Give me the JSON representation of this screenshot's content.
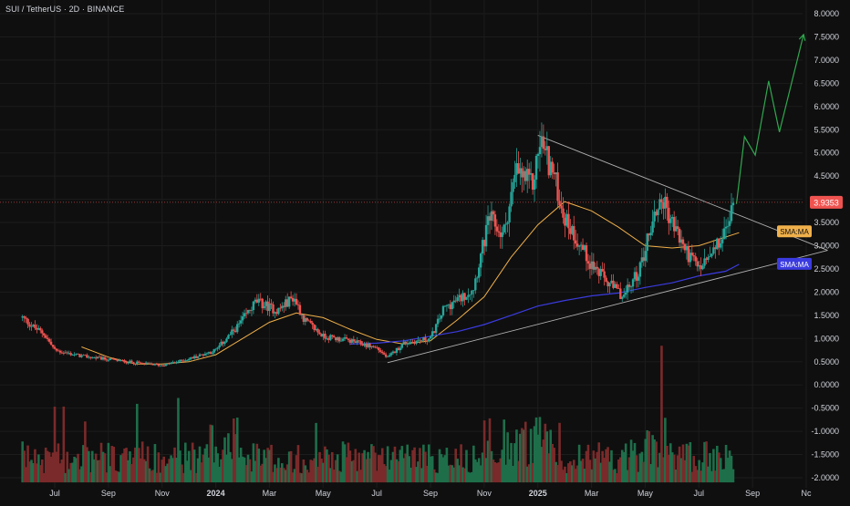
{
  "header": {
    "symbol": "SUI / TetherUS",
    "interval": "2D",
    "exchange": "BINANCE",
    "separator": " · "
  },
  "colors": {
    "background": "#0f0f0f",
    "grid": "#1c1c1c",
    "axis_text": "#d1d4dc",
    "up": "#26a69a",
    "down": "#ef5350",
    "vol_up": "#1e6e4a",
    "vol_down": "#7a2a2a",
    "sma_short": "#f0b04a",
    "sma_long": "#3b3be0",
    "triangle": "#b0b0b0",
    "projection": "#2fa84f",
    "price_line": "#ef5350"
  },
  "chart_data": {
    "type": "candlestick",
    "title": "SUI / TetherUS · 2D · BINANCE",
    "y_axis": {
      "position": "right",
      "ticks": [
        "8.0000",
        "7.5000",
        "7.0000",
        "6.5000",
        "6.0000",
        "5.5000",
        "5.0000",
        "4.5000",
        "4.0000",
        "3.5000",
        "3.0000",
        "2.5000",
        "2.0000",
        "1.5000",
        "1.0000",
        "0.5000",
        "0.0000",
        "-0.5000",
        "-1.0000",
        "-1.5000",
        "-2.0000"
      ],
      "range": [
        -2.1,
        8.2
      ]
    },
    "x_axis": {
      "ticks": [
        "Jul",
        "Sep",
        "Nov",
        "2024",
        "Mar",
        "May",
        "Jul",
        "Sep",
        "Nov",
        "2025",
        "Mar",
        "May",
        "Jul",
        "Sep",
        "Nc"
      ],
      "bold_ticks": [
        "2024",
        "2025"
      ]
    },
    "x_ticks_time": [
      0.0,
      2.0,
      4.0,
      6.0,
      8.0,
      10.0,
      12.0,
      14.0,
      16.0,
      18.0,
      20.0,
      22.0,
      24.0,
      26.0,
      28.0
    ],
    "x_range": [
      -1.2,
      29.0
    ],
    "price_anchors": [
      [
        -1.2,
        1.45
      ],
      [
        -0.8,
        1.25
      ],
      [
        -0.4,
        1.1
      ],
      [
        0.0,
        0.75
      ],
      [
        0.5,
        0.68
      ],
      [
        1.0,
        0.62
      ],
      [
        2.0,
        0.55
      ],
      [
        3.0,
        0.48
      ],
      [
        4.0,
        0.42
      ],
      [
        5.0,
        0.56
      ],
      [
        6.0,
        0.75
      ],
      [
        6.8,
        1.25
      ],
      [
        7.5,
        1.8
      ],
      [
        8.3,
        1.6
      ],
      [
        8.9,
        1.9
      ],
      [
        9.3,
        1.4
      ],
      [
        10.0,
        1.05
      ],
      [
        11.0,
        0.95
      ],
      [
        12.0,
        0.8
      ],
      [
        12.4,
        0.58
      ],
      [
        13.0,
        0.9
      ],
      [
        14.0,
        1.0
      ],
      [
        14.5,
        1.65
      ],
      [
        15.2,
        1.9
      ],
      [
        15.6,
        2.1
      ],
      [
        16.2,
        3.6
      ],
      [
        16.7,
        3.2
      ],
      [
        17.2,
        4.6
      ],
      [
        17.8,
        4.3
      ],
      [
        18.1,
        5.3
      ],
      [
        18.6,
        4.5
      ],
      [
        19.0,
        3.6
      ],
      [
        19.5,
        3.1
      ],
      [
        20.0,
        2.6
      ],
      [
        20.6,
        2.2
      ],
      [
        21.2,
        1.9
      ],
      [
        21.8,
        2.5
      ],
      [
        22.2,
        3.4
      ],
      [
        22.6,
        4.05
      ],
      [
        23.0,
        3.5
      ],
      [
        23.5,
        2.9
      ],
      [
        24.0,
        2.5
      ],
      [
        24.5,
        2.8
      ],
      [
        25.0,
        3.3
      ],
      [
        25.3,
        3.9
      ]
    ],
    "current_price": "3.9353",
    "sma_short": {
      "label": "SMA:MA",
      "points": [
        [
          1.0,
          0.82
        ],
        [
          2.0,
          0.6
        ],
        [
          3.0,
          0.45
        ],
        [
          4.0,
          0.45
        ],
        [
          5.0,
          0.5
        ],
        [
          6.0,
          0.65
        ],
        [
          7.0,
          1.0
        ],
        [
          8.0,
          1.35
        ],
        [
          9.0,
          1.55
        ],
        [
          10.0,
          1.45
        ],
        [
          11.0,
          1.2
        ],
        [
          12.0,
          0.98
        ],
        [
          13.0,
          0.88
        ],
        [
          14.0,
          0.95
        ],
        [
          15.0,
          1.4
        ],
        [
          16.0,
          1.9
        ],
        [
          17.0,
          2.75
        ],
        [
          18.0,
          3.45
        ],
        [
          19.0,
          3.95
        ],
        [
          20.0,
          3.75
        ],
        [
          21.0,
          3.4
        ],
        [
          22.0,
          3.0
        ],
        [
          23.0,
          2.95
        ],
        [
          24.0,
          3.0
        ],
        [
          25.5,
          3.28
        ]
      ]
    },
    "sma_long": {
      "label": "SMA:MA",
      "points": [
        [
          11.0,
          0.88
        ],
        [
          12.0,
          0.9
        ],
        [
          13.0,
          0.95
        ],
        [
          14.0,
          1.05
        ],
        [
          15.0,
          1.15
        ],
        [
          16.0,
          1.3
        ],
        [
          17.0,
          1.5
        ],
        [
          18.0,
          1.7
        ],
        [
          19.0,
          1.82
        ],
        [
          20.0,
          1.92
        ],
        [
          21.0,
          1.98
        ],
        [
          22.0,
          2.1
        ],
        [
          23.0,
          2.2
        ],
        [
          24.0,
          2.35
        ],
        [
          25.0,
          2.45
        ],
        [
          25.5,
          2.6
        ]
      ]
    },
    "triangle": {
      "upper": [
        [
          18.0,
          5.38
        ],
        [
          28.8,
          2.9
        ]
      ],
      "lower": [
        [
          12.4,
          0.48
        ],
        [
          28.8,
          2.9
        ]
      ]
    },
    "projection": [
      [
        25.4,
        3.9
      ],
      [
        25.7,
        5.35
      ],
      [
        26.1,
        4.95
      ],
      [
        26.6,
        6.55
      ],
      [
        27.0,
        5.45
      ],
      [
        27.9,
        7.55
      ]
    ],
    "volume_baseline": -2.1
  }
}
